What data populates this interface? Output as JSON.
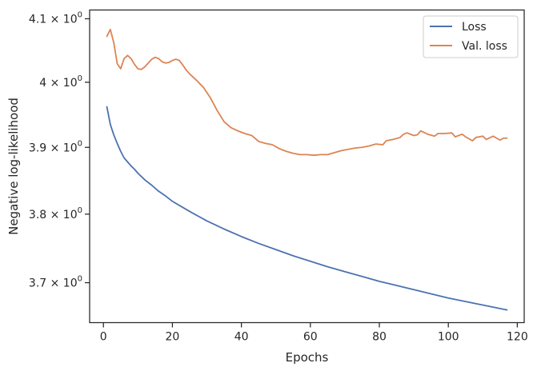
{
  "chart_data": {
    "type": "line",
    "title": "",
    "xlabel": "Epochs",
    "ylabel": "Negative log-likelihood",
    "yscale": "log",
    "xlim": [
      -4,
      122
    ],
    "ylim": [
      3.643,
      4.114
    ],
    "xticks": [
      0,
      20,
      40,
      60,
      80,
      100,
      120
    ],
    "yticks": [
      {
        "value": 3.7,
        "base": "3.7",
        "exp": "0"
      },
      {
        "value": 3.8,
        "base": "3.8",
        "exp": "0"
      },
      {
        "value": 3.9,
        "base": "3.9",
        "exp": "0"
      },
      {
        "value": 4.0,
        "base": "4",
        "exp": "0"
      },
      {
        "value": 4.1,
        "base": "4.1",
        "exp": "0"
      }
    ],
    "times_sign": "×",
    "grid": false,
    "legend": {
      "position": "top-right"
    },
    "series": [
      {
        "name": "Loss",
        "color": "#4c72b0",
        "x": [
          1,
          2,
          3,
          4,
          5,
          6,
          7,
          8,
          9,
          10,
          12,
          14,
          16,
          18,
          20,
          25,
          30,
          35,
          40,
          45,
          50,
          55,
          60,
          65,
          70,
          75,
          80,
          85,
          90,
          95,
          100,
          105,
          110,
          115,
          117
        ],
        "y": [
          3.962,
          3.935,
          3.919,
          3.906,
          3.894,
          3.884,
          3.878,
          3.872,
          3.867,
          3.861,
          3.851,
          3.843,
          3.834,
          3.827,
          3.819,
          3.804,
          3.79,
          3.778,
          3.767,
          3.757,
          3.748,
          3.739,
          3.731,
          3.723,
          3.716,
          3.709,
          3.702,
          3.696,
          3.69,
          3.684,
          3.678,
          3.673,
          3.668,
          3.663,
          3.661
        ]
      },
      {
        "name": "Val. loss",
        "color": "#dd8452",
        "x": [
          1,
          2,
          3,
          4,
          5,
          6,
          7,
          8,
          9,
          10,
          11,
          12,
          13,
          14,
          15,
          16,
          17,
          18,
          19,
          20,
          21,
          22,
          23,
          24,
          25,
          27,
          29,
          31,
          33,
          35,
          37,
          39,
          41,
          43,
          45,
          47,
          49,
          51,
          53,
          55,
          57,
          59,
          61,
          63,
          65,
          67,
          69,
          71,
          73,
          75,
          77,
          79,
          81,
          82,
          84,
          86,
          87,
          88,
          90,
          91,
          92,
          94,
          96,
          97,
          99,
          101,
          102,
          104,
          105,
          107,
          108,
          110,
          111,
          113,
          114,
          115,
          116,
          117
        ],
        "y": [
          4.072,
          4.083,
          4.062,
          4.029,
          4.021,
          4.037,
          4.042,
          4.037,
          4.028,
          4.021,
          4.02,
          4.024,
          4.03,
          4.036,
          4.039,
          4.037,
          4.032,
          4.03,
          4.031,
          4.034,
          4.036,
          4.034,
          4.027,
          4.019,
          4.013,
          4.003,
          3.992,
          3.976,
          3.956,
          3.939,
          3.93,
          3.925,
          3.921,
          3.918,
          3.909,
          3.906,
          3.904,
          3.898,
          3.894,
          3.891,
          3.889,
          3.889,
          3.888,
          3.889,
          3.889,
          3.892,
          3.895,
          3.897,
          3.899,
          3.9,
          3.902,
          3.905,
          3.904,
          3.91,
          3.912,
          3.915,
          3.92,
          3.922,
          3.918,
          3.919,
          3.925,
          3.92,
          3.917,
          3.921,
          3.921,
          3.922,
          3.916,
          3.92,
          3.916,
          3.91,
          3.915,
          3.917,
          3.912,
          3.917,
          3.914,
          3.911,
          3.914,
          3.914
        ]
      }
    ]
  }
}
